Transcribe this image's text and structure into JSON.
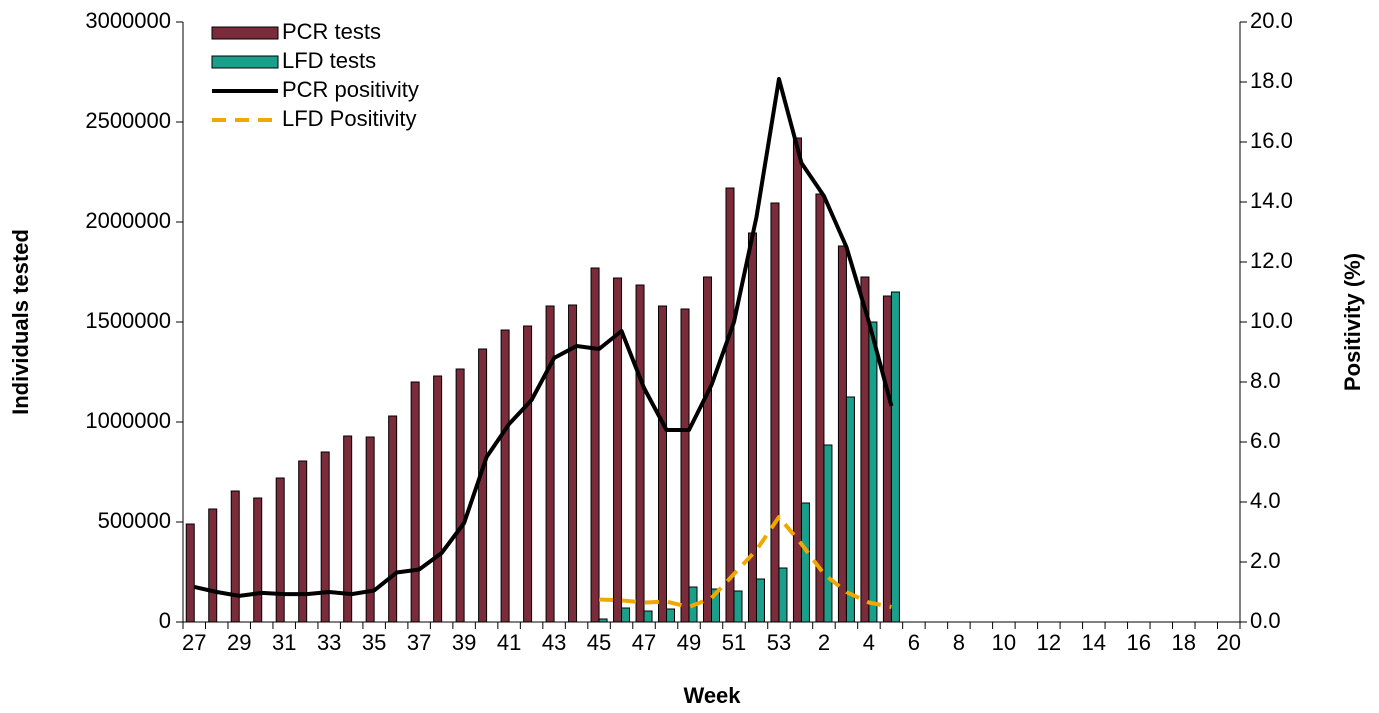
{
  "chart_data": {
    "type": "bar",
    "xlabel": "Week",
    "ylabel": "Individuals tested",
    "y2label": "Positivity (%)",
    "categories": [
      27,
      null,
      29,
      null,
      31,
      null,
      33,
      null,
      35,
      null,
      37,
      null,
      39,
      null,
      41,
      null,
      43,
      null,
      45,
      null,
      47,
      null,
      49,
      null,
      51,
      null,
      53,
      null,
      2,
      null,
      4,
      null,
      6,
      null,
      8,
      null,
      10,
      null,
      12,
      null,
      14,
      null,
      16,
      null,
      18,
      null,
      20
    ],
    "ylim": [
      0,
      3000000
    ],
    "yticks": [
      0,
      500000,
      1000000,
      1500000,
      2000000,
      2500000,
      3000000
    ],
    "y2lim": [
      0,
      20
    ],
    "y2ticks": [
      {
        "value": 0,
        "label": "0.0"
      },
      {
        "value": 2,
        "label": "2.0"
      },
      {
        "value": 4,
        "label": "4.0"
      },
      {
        "value": 6,
        "label": "6.0"
      },
      {
        "value": 8,
        "label": "8.0"
      },
      {
        "value": 10,
        "label": "10.0"
      },
      {
        "value": 12,
        "label": "12.0"
      },
      {
        "value": 14,
        "label": "14.0"
      },
      {
        "value": 16,
        "label": "16.0"
      },
      {
        "value": 18,
        "label": "18.0"
      },
      {
        "value": 20,
        "label": "20.0"
      }
    ],
    "legend": "upper left",
    "series": [
      {
        "name": "PCR tests",
        "type": "bar",
        "color": "#7b2c3a",
        "values": [
          490000,
          565000,
          655000,
          620000,
          720000,
          805000,
          850000,
          930000,
          925000,
          1030000,
          1200000,
          1230000,
          1265000,
          1365000,
          1460000,
          1480000,
          1580000,
          1585000,
          1770000,
          1720000,
          1685000,
          1580000,
          1565000,
          1725000,
          2170000,
          1945000,
          2095000,
          2420000,
          2140000,
          1880000,
          1725000,
          1630000,
          null,
          null,
          null,
          null,
          null,
          null,
          null,
          null,
          null,
          null,
          null,
          null,
          null,
          null,
          null
        ]
      },
      {
        "name": "LFD tests",
        "type": "bar",
        "color": "#1aa08a",
        "values": [
          null,
          null,
          null,
          null,
          null,
          null,
          null,
          null,
          null,
          null,
          null,
          null,
          null,
          null,
          null,
          null,
          null,
          null,
          15000,
          70000,
          55000,
          65000,
          175000,
          165000,
          155000,
          215000,
          270000,
          595000,
          885000,
          1125000,
          1500000,
          1650000,
          null,
          null,
          null,
          null,
          null,
          null,
          null,
          null,
          null,
          null,
          null,
          null,
          null,
          null,
          null
        ]
      },
      {
        "name": "PCR positivity",
        "type": "line",
        "axis": "y2",
        "color": "#000000",
        "line_style": "solid",
        "values": [
          1.17,
          1.0,
          0.87,
          0.97,
          0.93,
          0.93,
          1.0,
          0.93,
          1.05,
          1.65,
          1.75,
          2.3,
          3.3,
          5.5,
          6.6,
          7.4,
          8.8,
          9.2,
          9.1,
          9.7,
          7.8,
          6.4,
          6.4,
          7.9,
          10.0,
          13.5,
          18.1,
          15.3,
          14.2,
          12.5,
          10.0,
          7.2,
          null,
          null,
          null,
          null,
          null,
          null,
          null,
          null,
          null,
          null,
          null,
          null,
          null,
          null,
          null
        ]
      },
      {
        "name": "LFD Positivity",
        "type": "line",
        "axis": "y2",
        "color": "#f0a800",
        "line_style": "dashed",
        "values": [
          null,
          null,
          null,
          null,
          null,
          null,
          null,
          null,
          null,
          null,
          null,
          null,
          null,
          null,
          null,
          null,
          null,
          null,
          0.75,
          0.72,
          0.65,
          0.68,
          0.5,
          0.8,
          1.6,
          2.4,
          3.5,
          2.6,
          1.6,
          1.0,
          0.65,
          0.5,
          null,
          null,
          null,
          null,
          null,
          null,
          null,
          null,
          null,
          null,
          null,
          null,
          null,
          null,
          null
        ]
      }
    ]
  }
}
